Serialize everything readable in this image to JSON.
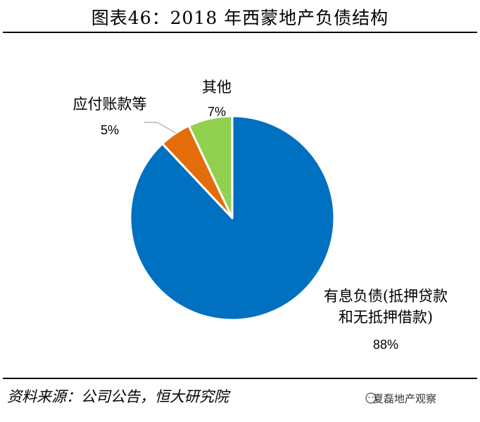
{
  "title": "图表46：2018 年西蒙地产负债结构",
  "source": "资料来源：公司公告，恒大研究院",
  "watermark": "夏磊地产观察",
  "chart_data": {
    "type": "pie",
    "title": "图表46：2018 年西蒙地产负债结构",
    "slices": [
      {
        "label_lines": [
          "有息负债(抵押贷款",
          "和无抵押借款)"
        ],
        "percent_label": "88%",
        "value": 88,
        "color": "#0070C0"
      },
      {
        "label_lines": [
          "应付账款等"
        ],
        "percent_label": "5%",
        "value": 5,
        "color": "#E46C0A"
      },
      {
        "label_lines": [
          "其他"
        ],
        "percent_label": "7%",
        "value": 7,
        "color": "#92D050"
      }
    ],
    "start_angle_deg": 0,
    "direction": "clockwise",
    "slice_border_color": "#ffffff"
  }
}
